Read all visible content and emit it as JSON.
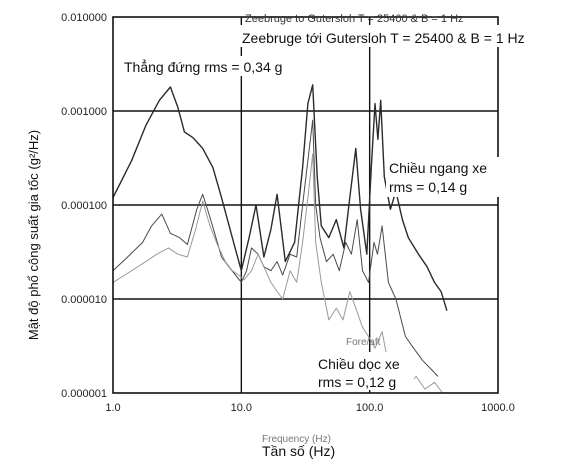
{
  "chart_data": {
    "type": "line",
    "title": "Zeebruge tới Gutersloh T = 25400 & B = 1 Hz",
    "title_overprint": "Zeebruge to Gutersloh T = 25400 & B = 1 Hz",
    "xlabel": "Tần số (Hz)",
    "xlabel_overprint": "Frequency (Hz)",
    "ylabel": "Mật độ phổ công suất gia tốc (g²/Hz)",
    "x_scale": "log",
    "y_scale": "log",
    "xlim": [
      1,
      1000
    ],
    "ylim": [
      1e-06,
      0.01
    ],
    "x_ticks": [
      "1.0",
      "10.0",
      "100.0",
      "1000.0"
    ],
    "y_ticks": [
      "0.000001",
      "0.000010",
      "0.000100",
      "0.001000",
      "0.010000"
    ],
    "grid": true,
    "annotations": {
      "vertical": "Thẳng đứng rms = 0,34 g",
      "lateral_line1": "Chiều ngang xe",
      "lateral_line2": "rms = 0,14 g",
      "longitudinal_line1": "Chiều dọc xe",
      "longitudinal_line2": "rms = 0,12 g",
      "overprint_small": "Fore/aft"
    },
    "series": [
      {
        "color": "#2b2b2b",
        "width": 1.4,
        "points": [
          [
            1.0,
            0.00012
          ],
          [
            1.4,
            0.0003
          ],
          [
            1.8,
            0.0007
          ],
          [
            2.3,
            0.0013
          ],
          [
            2.8,
            0.0018
          ],
          [
            3.2,
            0.0011
          ],
          [
            3.6,
            0.0006
          ],
          [
            4.2,
            0.00052
          ],
          [
            5.0,
            0.0004
          ],
          [
            6.0,
            0.00025
          ],
          [
            7.0,
            0.00012
          ],
          [
            8.5,
            4.5e-05
          ],
          [
            10.0,
            2e-05
          ],
          [
            11.5,
            4.5e-05
          ],
          [
            13.0,
            0.0001
          ],
          [
            15.0,
            2.8e-05
          ],
          [
            17.0,
            5.5e-05
          ],
          [
            19.0,
            0.00013
          ],
          [
            22.0,
            2.5e-05
          ],
          [
            26.0,
            4e-05
          ],
          [
            30.0,
            0.00025
          ],
          [
            33.0,
            0.0012
          ],
          [
            36.0,
            0.0019
          ],
          [
            39.0,
            0.0002
          ],
          [
            42.0,
            6e-05
          ],
          [
            48.0,
            4.5e-05
          ],
          [
            55.0,
            7e-05
          ],
          [
            63.0,
            3.5e-05
          ],
          [
            70.0,
            0.00012
          ],
          [
            78.0,
            0.0004
          ],
          [
            85.0,
            9e-05
          ],
          [
            95.0,
            3e-05
          ],
          [
            103.0,
            0.00025
          ],
          [
            110.0,
            0.0012
          ],
          [
            116.0,
            0.0005
          ],
          [
            122.0,
            0.0013
          ],
          [
            130.0,
            0.0002
          ],
          [
            145.0,
            9e-05
          ],
          [
            160.0,
            0.00014
          ],
          [
            180.0,
            7e-05
          ],
          [
            200.0,
            4.5e-05
          ],
          [
            240.0,
            3e-05
          ],
          [
            280.0,
            2.2e-05
          ],
          [
            320.0,
            1.5e-05
          ],
          [
            360.0,
            1.2e-05
          ],
          [
            400.0,
            7.5e-06
          ]
        ]
      },
      {
        "color": "#4a4a4a",
        "width": 1.0,
        "points": [
          [
            1.0,
            2e-05
          ],
          [
            1.3,
            2.8e-05
          ],
          [
            1.7,
            4e-05
          ],
          [
            2.0,
            6e-05
          ],
          [
            2.4,
            8e-05
          ],
          [
            2.8,
            5e-05
          ],
          [
            3.3,
            4.5e-05
          ],
          [
            3.8,
            3.8e-05
          ],
          [
            4.5,
            9e-05
          ],
          [
            5.0,
            0.00013
          ],
          [
            5.6,
            8e-05
          ],
          [
            6.2,
            5e-05
          ],
          [
            7.0,
            2.8e-05
          ],
          [
            8.0,
            2.2e-05
          ],
          [
            9.0,
            1.8e-05
          ],
          [
            10.0,
            1.5e-05
          ],
          [
            11.0,
            2e-05
          ],
          [
            12.0,
            3.5e-05
          ],
          [
            13.5,
            3e-05
          ],
          [
            15.0,
            2.2e-05
          ],
          [
            17.0,
            2e-05
          ],
          [
            19.0,
            2.5e-05
          ],
          [
            21.0,
            1.8e-05
          ],
          [
            24.0,
            3e-05
          ],
          [
            27.0,
            2.8e-05
          ],
          [
            30.0,
            0.0001
          ],
          [
            33.0,
            0.0003
          ],
          [
            36.0,
            0.0008
          ],
          [
            38.0,
            0.0001
          ],
          [
            41.0,
            4.5e-05
          ],
          [
            46.0,
            2.5e-05
          ],
          [
            52.0,
            3e-05
          ],
          [
            58.0,
            2e-05
          ],
          [
            65.0,
            4e-05
          ],
          [
            72.0,
            3e-05
          ],
          [
            80.0,
            7e-05
          ],
          [
            88.0,
            2e-05
          ],
          [
            98.0,
            1.5e-05
          ],
          [
            108.0,
            4e-05
          ],
          [
            115.0,
            3e-05
          ],
          [
            125.0,
            6e-05
          ],
          [
            140.0,
            1.5e-05
          ],
          [
            160.0,
            1e-05
          ],
          [
            190.0,
            4e-06
          ],
          [
            220.0,
            3e-06
          ],
          [
            260.0,
            2.2e-06
          ],
          [
            300.0,
            1.8e-06
          ],
          [
            340.0,
            1.5e-06
          ]
        ]
      },
      {
        "color": "#9a9a9a",
        "width": 1.0,
        "points": [
          [
            1.0,
            1.5e-05
          ],
          [
            1.4,
            2e-05
          ],
          [
            1.8,
            2.5e-05
          ],
          [
            2.2,
            3e-05
          ],
          [
            2.7,
            3.5e-05
          ],
          [
            3.2,
            3e-05
          ],
          [
            3.8,
            2.8e-05
          ],
          [
            4.4,
            5.5e-05
          ],
          [
            5.0,
            0.00011
          ],
          [
            5.7,
            6e-05
          ],
          [
            6.5,
            3.8e-05
          ],
          [
            7.5,
            2.5e-05
          ],
          [
            8.5,
            2e-05
          ],
          [
            9.5,
            1.8e-05
          ],
          [
            10.5,
            1.6e-05
          ],
          [
            12.0,
            2e-05
          ],
          [
            13.5,
            3e-05
          ],
          [
            15.0,
            2.2e-05
          ],
          [
            17.0,
            1.5e-05
          ],
          [
            19.0,
            1.2e-05
          ],
          [
            21.0,
            1e-05
          ],
          [
            24.0,
            2e-05
          ],
          [
            27.0,
            1.5e-05
          ],
          [
            30.0,
            4e-05
          ],
          [
            33.0,
            0.00012
          ],
          [
            36.0,
            0.00035
          ],
          [
            38.0,
            4e-05
          ],
          [
            42.0,
            1.5e-05
          ],
          [
            48.0,
            6e-06
          ],
          [
            55.0,
            8e-06
          ],
          [
            62.0,
            6e-06
          ],
          [
            70.0,
            1.2e-05
          ],
          [
            78.0,
            8e-06
          ],
          [
            88.0,
            5e-06
          ],
          [
            98.0,
            4e-06
          ],
          [
            110.0,
            3e-06
          ],
          [
            125.0,
            4.5e-06
          ],
          [
            140.0,
            2e-06
          ],
          [
            160.0,
            1.6e-06
          ],
          [
            180.0,
            2e-06
          ],
          [
            200.0,
            1.2e-06
          ],
          [
            230.0,
            1.5e-06
          ],
          [
            270.0,
            1.1e-06
          ],
          [
            320.0,
            1.3e-06
          ],
          [
            370.0,
            1e-06
          ]
        ]
      }
    ]
  }
}
